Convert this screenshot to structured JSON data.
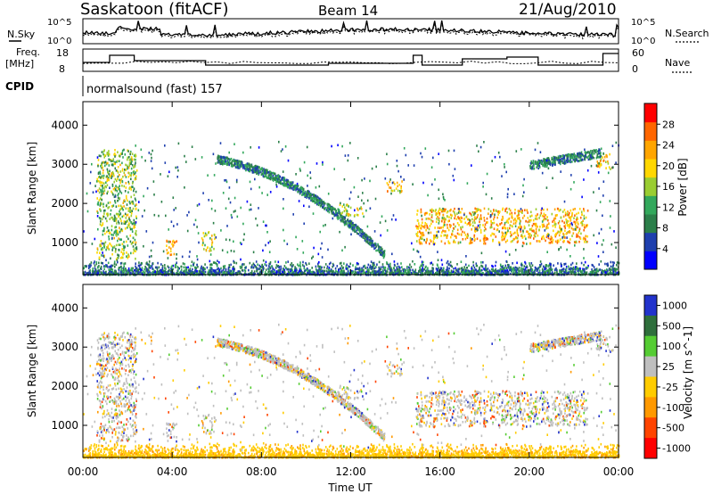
{
  "header": {
    "station": "Saskatoon (fitACF)",
    "beam": "Beam 14",
    "date": "21/Aug/2010"
  },
  "nsky_panel": {
    "left_label": "N.Sky",
    "left_ticks": [
      "10^5",
      "10^0"
    ],
    "right_ticks": [
      "10^5",
      "10^0"
    ],
    "right_label": "N.Search"
  },
  "freq_panel": {
    "left_label_1": "Freq.",
    "left_label_2": "[MHz]",
    "left_ticks": [
      "18",
      "8"
    ],
    "right_ticks": [
      "60",
      "0"
    ],
    "right_label": "Nave"
  },
  "cpid": {
    "label": "CPID",
    "value": "normalsound (fast) 157"
  },
  "colors": {
    "power": [
      "#0000ff",
      "#1e3fae",
      "#2c7f4a",
      "#33a85c",
      "#9acd32",
      "#ffd700",
      "#ffa500",
      "#ff6600",
      "#ff0000"
    ],
    "velocity": [
      "#2233cc",
      "#2f6f3c",
      "#55cc33",
      "#bfbfbf",
      "#ffcc00",
      "#ff9900",
      "#ff4400",
      "#ff0000"
    ]
  },
  "chart_data": [
    {
      "type": "heatmap",
      "title": "Power",
      "xlabel": "Time UT",
      "ylabel": "Slant Range [km]",
      "xlim": [
        "00:00",
        "00:00"
      ],
      "x_ticks": [
        "00:00",
        "04:00",
        "08:00",
        "12:00",
        "16:00",
        "20:00",
        "00:00"
      ],
      "ylim": [
        180,
        4600
      ],
      "y_ticks": [
        1000,
        2000,
        3000,
        4000
      ],
      "colorbar_label": "Power [dB]",
      "colorbar_ticks": [
        4,
        8,
        12,
        16,
        20,
        24,
        28
      ],
      "colorbar_range": [
        0,
        32
      ],
      "features": [
        {
          "t": [
            0.6,
            2.4
          ],
          "range": [
            600,
            3400
          ],
          "power_db": [
            8,
            22
          ]
        },
        {
          "t": [
            3.7,
            4.2
          ],
          "range": [
            700,
            1100
          ],
          "power_db": [
            18,
            28
          ]
        },
        {
          "t": [
            5.3,
            5.9
          ],
          "range": [
            800,
            1300
          ],
          "power_db": [
            12,
            24
          ]
        },
        {
          "t": [
            14.9,
            22.6
          ],
          "range": [
            1000,
            1900
          ],
          "power_db": [
            16,
            28
          ]
        },
        {
          "t": [
            11.4,
            12.6
          ],
          "range": [
            1700,
            2000
          ],
          "power_db": [
            12,
            24
          ]
        },
        {
          "t": [
            13.6,
            14.3
          ],
          "range": [
            2300,
            2600
          ],
          "power_db": [
            16,
            26
          ]
        },
        {
          "t": [
            23.0,
            23.7
          ],
          "range": [
            2900,
            3300
          ],
          "power_db": [
            16,
            26
          ]
        }
      ]
    },
    {
      "type": "heatmap",
      "title": "Velocity",
      "xlabel": "Time UT",
      "ylabel": "Slant Range [km]",
      "xlim": [
        "00:00",
        "00:00"
      ],
      "x_ticks": [
        "00:00",
        "04:00",
        "08:00",
        "12:00",
        "16:00",
        "20:00",
        "00:00"
      ],
      "ylim": [
        180,
        4600
      ],
      "y_ticks": [
        1000,
        2000,
        3000,
        4000
      ],
      "colorbar_label": "Velocity [m s^-1]",
      "colorbar_ticks": [
        "1000",
        "500",
        "100",
        "25",
        "-25",
        "-100",
        "-500",
        "-1000"
      ]
    }
  ]
}
